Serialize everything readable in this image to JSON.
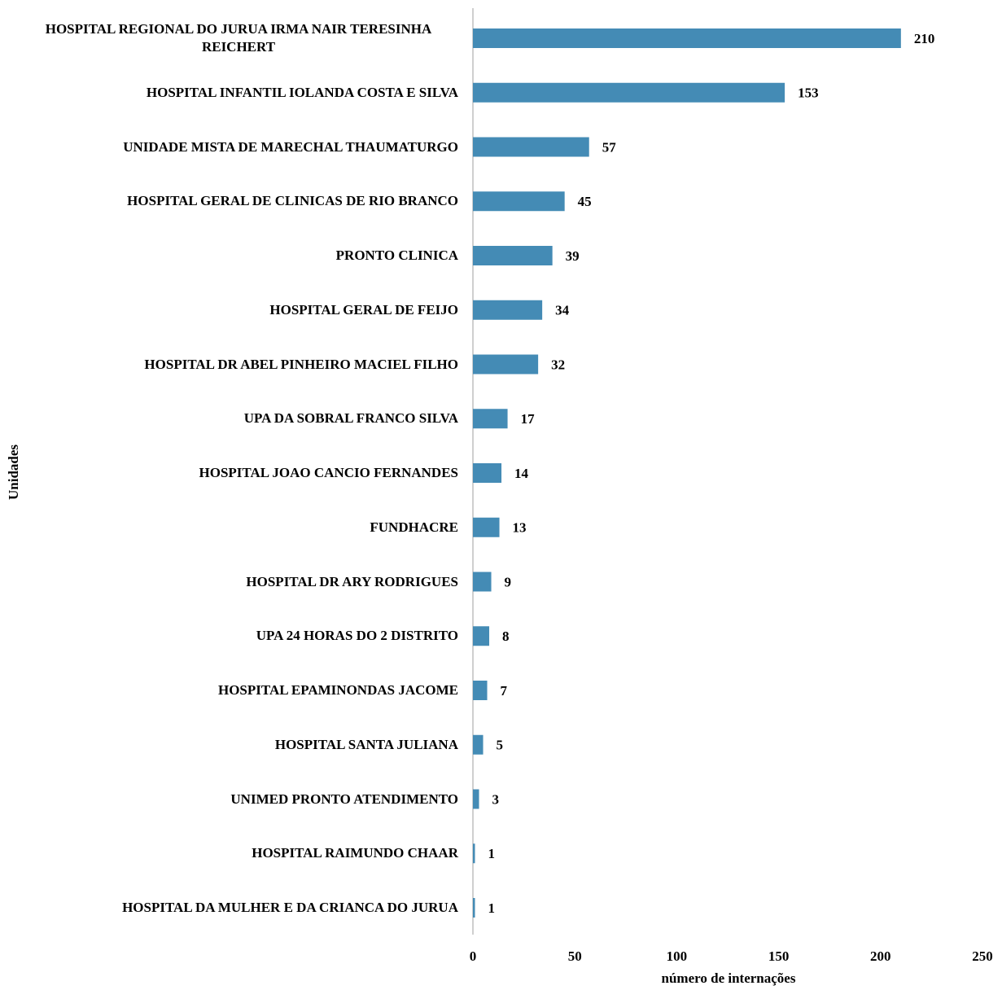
{
  "chart_data": {
    "type": "barh",
    "x_axis_label": "número de internações",
    "y_axis_label": "Unidades",
    "categories": [
      "HOSPITAL REGIONAL DO JURUA IRMA NAIR TERESINHA REICHERT",
      "HOSPITAL INFANTIL IOLANDA COSTA E SILVA",
      "UNIDADE MISTA DE MARECHAL THAUMATURGO",
      "HOSPITAL GERAL DE CLINICAS DE RIO BRANCO",
      "PRONTO CLINICA",
      "HOSPITAL GERAL DE FEIJO",
      "HOSPITAL DR ABEL PINHEIRO MACIEL FILHO",
      "UPA DA SOBRAL FRANCO SILVA",
      "HOSPITAL JOAO CANCIO FERNANDES",
      "FUNDHACRE",
      "HOSPITAL DR ARY RODRIGUES",
      "UPA 24 HORAS DO 2 DISTRITO",
      "HOSPITAL EPAMINONDAS JACOME",
      "HOSPITAL SANTA JULIANA",
      "UNIMED PRONTO ATENDIMENTO",
      "HOSPITAL RAIMUNDO CHAAR",
      "HOSPITAL DA MULHER E DA CRIANCA DO JURUA"
    ],
    "values": [
      210,
      153,
      57,
      45,
      39,
      34,
      32,
      17,
      14,
      13,
      9,
      8,
      7,
      5,
      3,
      1,
      1
    ],
    "color": "#448bb5",
    "xlim": [
      0,
      250
    ],
    "xticks": [
      0,
      50,
      100,
      150,
      200,
      250
    ],
    "grid": false
  }
}
